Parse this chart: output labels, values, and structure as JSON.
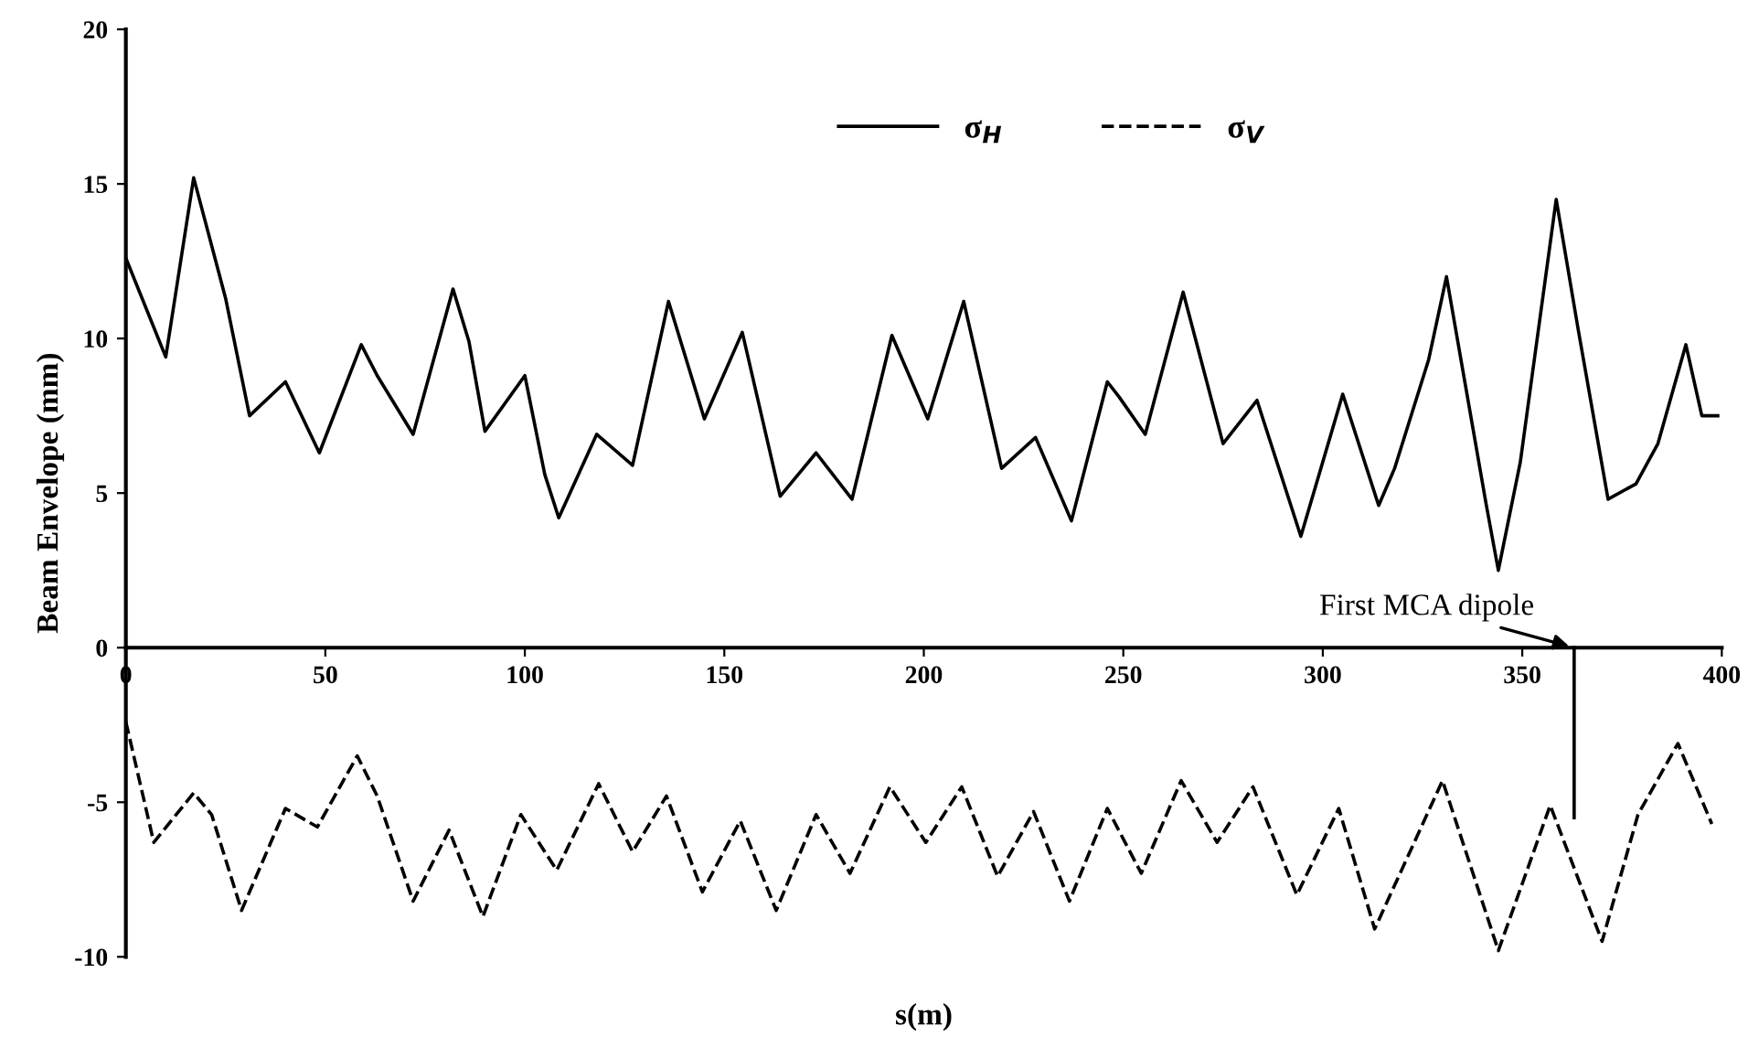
{
  "chart_data": {
    "type": "line",
    "xlabel": "s(m)",
    "ylabel": "Beam Envelope (mm)",
    "xlim": [
      0,
      400
    ],
    "xticks": [
      0,
      50,
      100,
      150,
      200,
      250,
      300,
      350,
      400
    ],
    "ylim": [
      -10,
      20
    ],
    "yticks": [
      {
        "value": -10,
        "label": "-10"
      },
      {
        "value": -5,
        "label": "-5"
      },
      0,
      5,
      10,
      15,
      20
    ],
    "grid": false,
    "legend": "top",
    "marker": "none",
    "series": [
      {
        "name": "σ$_{H}$",
        "color": "#000000",
        "line_style": "solid",
        "x": [
          0,
          10,
          17,
          25,
          31,
          40,
          48.5,
          59,
          63,
          72,
          82,
          86,
          90,
          100,
          105,
          108.5,
          118,
          127,
          136,
          145,
          154.5,
          164,
          173,
          182,
          192,
          201,
          210,
          219.5,
          228,
          237,
          246,
          249,
          255.5,
          265,
          275,
          283.5,
          294.5,
          305,
          314,
          318,
          326.5,
          331,
          341,
          344,
          349.5,
          358.5,
          364,
          371.5,
          378.5,
          384,
          391,
          395,
          399
        ],
        "values": [
          12.6,
          9.4,
          15.2,
          11.3,
          7.5,
          8.6,
          6.3,
          9.8,
          8.8,
          6.9,
          11.6,
          9.9,
          7.0,
          8.8,
          5.6,
          4.2,
          6.9,
          5.9,
          11.2,
          7.4,
          10.2,
          4.9,
          6.3,
          4.8,
          10.1,
          7.4,
          11.2,
          5.8,
          6.8,
          4.1,
          8.6,
          8.1,
          6.9,
          11.5,
          6.6,
          8.0,
          3.6,
          8.2,
          4.6,
          5.8,
          9.3,
          12.0,
          4.6,
          2.5,
          6.0,
          14.5,
          10.3,
          4.8,
          5.3,
          6.6,
          9.8,
          7.5,
          7.5
        ]
      },
      {
        "name": "σ$_{V}$",
        "color": "#000000",
        "line_style": "dashed",
        "x": [
          0,
          7,
          17,
          21.5,
          29,
          40,
          48,
          58,
          63,
          72,
          81,
          89.5,
          99,
          108,
          118.5,
          127,
          135.5,
          144.5,
          154,
          163,
          173,
          181.5,
          191.5,
          200.5,
          209.5,
          218.5,
          227.5,
          236.5,
          246,
          254.5,
          264.5,
          273.5,
          282.5,
          293.5,
          304,
          313,
          330,
          344,
          357,
          370,
          379,
          389,
          397.5
        ],
        "values": [
          -2.4,
          -6.3,
          -4.7,
          -5.4,
          -8.5,
          -5.2,
          -5.8,
          -3.5,
          -4.8,
          -8.2,
          -5.9,
          -8.7,
          -5.4,
          -7.2,
          -4.4,
          -6.6,
          -4.8,
          -7.9,
          -5.6,
          -8.5,
          -5.4,
          -7.3,
          -4.5,
          -6.3,
          -4.5,
          -7.4,
          -5.3,
          -8.2,
          -5.2,
          -7.3,
          -4.3,
          -6.3,
          -4.5,
          -8.0,
          -5.2,
          -9.1,
          -4.3,
          -9.8,
          -5.1,
          -9.5,
          -5.4,
          -3.1,
          -5.7
        ]
      },
      {
        "color": "#000000",
        "line_style": "solid",
        "x": [
          363,
          363
        ],
        "values": [
          0,
          -5.5
        ]
      }
    ],
    "annotations": [
      {
        "text": "First MCA dipole",
        "x": 363,
        "y": 0
      }
    ]
  }
}
